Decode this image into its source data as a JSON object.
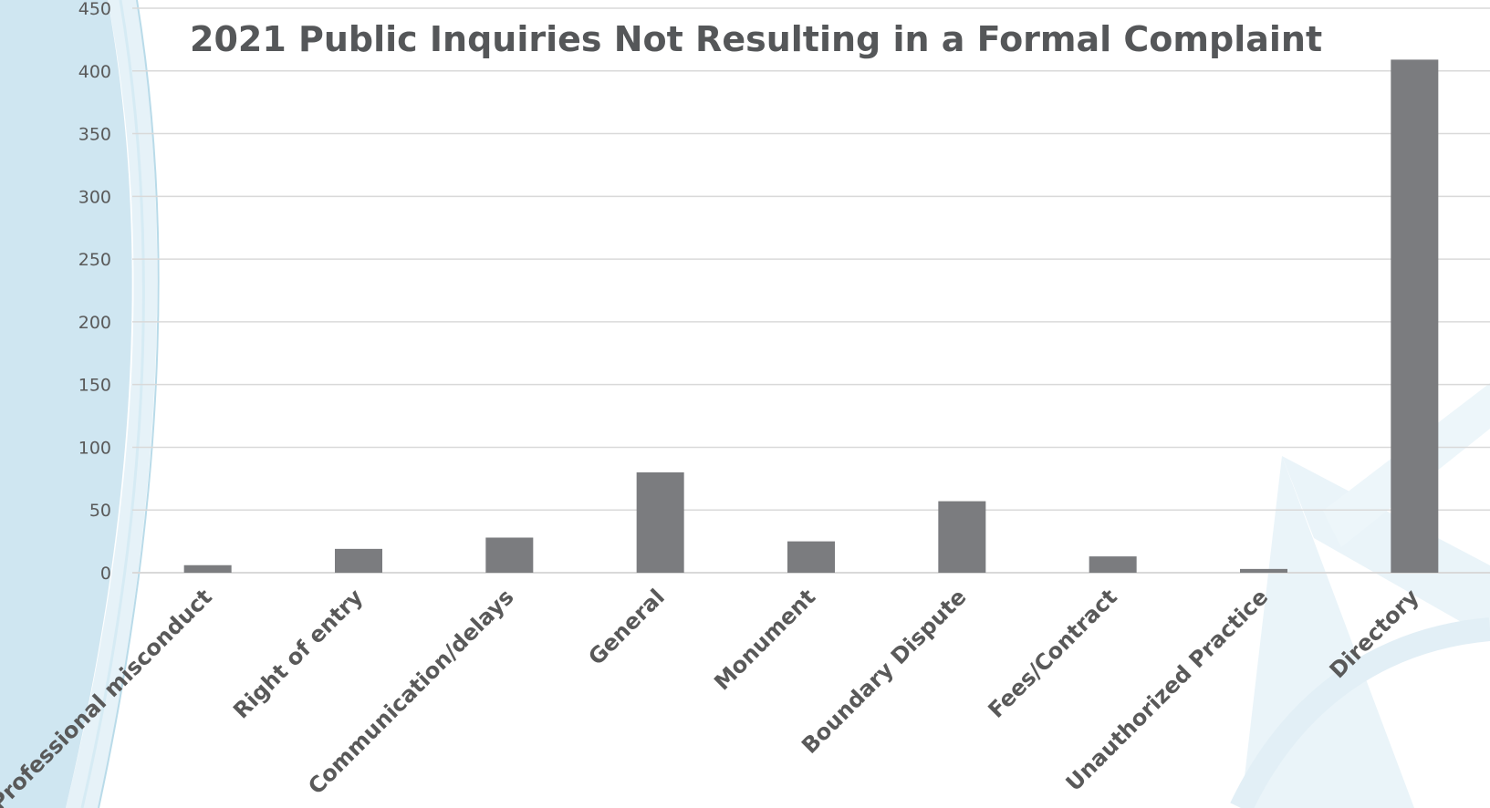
{
  "colors": {
    "bar": "#7b7c7f",
    "grid": "#d9d9d9",
    "text": "#595959",
    "title": "#555759",
    "decor_light": "#cfe6f1",
    "decor_line": "#b9dbe9"
  },
  "chart_data": {
    "type": "bar",
    "title": "2021 Public Inquiries Not Resulting in a Formal Complaint",
    "xlabel": "",
    "ylabel": "",
    "ylim": [
      0,
      450
    ],
    "yticks": [
      0,
      50,
      100,
      150,
      200,
      250,
      300,
      350,
      400,
      450
    ],
    "grid": true,
    "legend": "none",
    "categories": [
      "Professional misconduct",
      "Right of entry",
      "Communication/delays",
      "General",
      "Monument",
      "Boundary Dispute",
      "Fees/Contract",
      "Unauthorized Practice",
      "Directory"
    ],
    "values": [
      6,
      19,
      28,
      80,
      25,
      57,
      13,
      3,
      409
    ]
  }
}
